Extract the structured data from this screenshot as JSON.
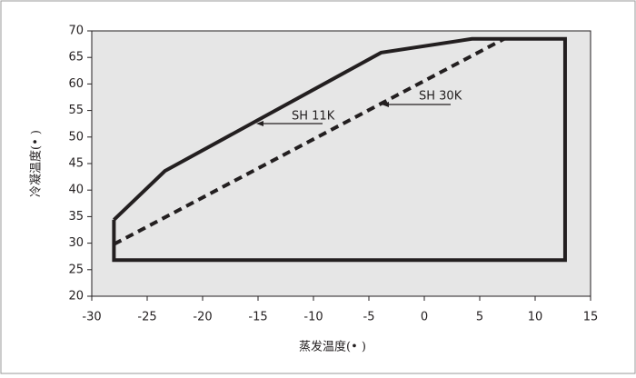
{
  "chart_data": {
    "type": "line",
    "xlabel": "蒸发温度(• )",
    "ylabel": "冷凝温度(• )",
    "xlim": [
      -30,
      15
    ],
    "xticks": [
      -30,
      -25,
      -20,
      -15,
      -10,
      -5,
      0,
      5,
      10,
      15
    ],
    "ylim": [
      20,
      70
    ],
    "yticks": [
      20,
      25,
      30,
      35,
      40,
      45,
      50,
      55,
      60,
      65,
      70
    ],
    "grid": false,
    "series": [
      {
        "color": "#231f20",
        "dashed": false,
        "x": [
          -28,
          -23.4,
          -3.9,
          4.3,
          12.7,
          12.7,
          -28,
          -28
        ],
        "values": [
          34.4,
          43.6,
          65.9,
          68.5,
          68.5,
          26.8,
          26.8,
          34.4
        ]
      },
      {
        "color": "#231f20",
        "dashed": true,
        "x": [
          -28,
          7.2
        ],
        "values": [
          29.8,
          68.5
        ]
      }
    ],
    "annotations": [
      {
        "text": "SH 11K"
      },
      {
        "text": "SH 30K"
      }
    ]
  }
}
